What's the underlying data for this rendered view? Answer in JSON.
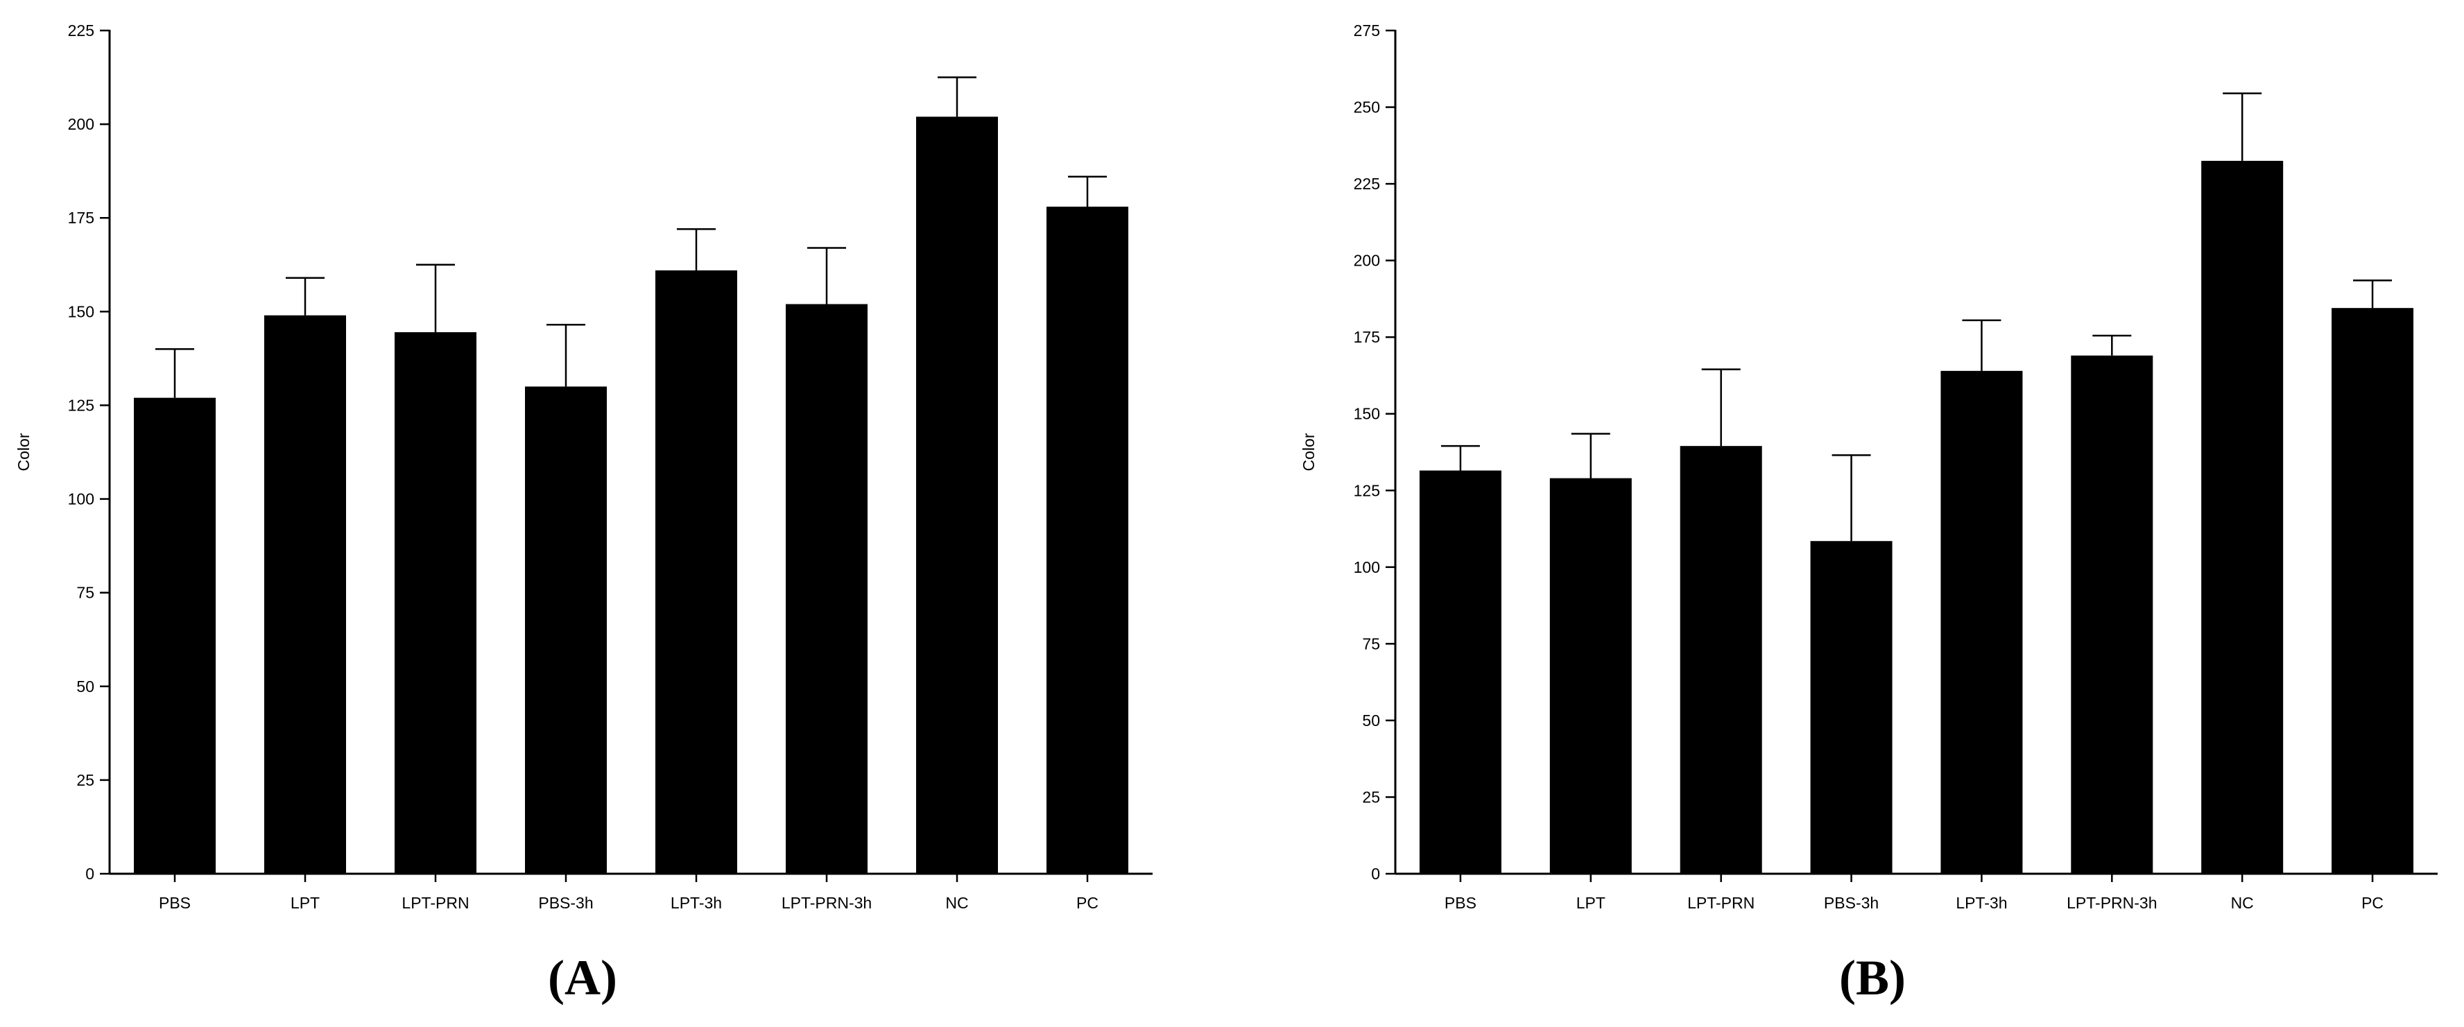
{
  "chart_data": [
    {
      "type": "bar",
      "panel_label": "(A)",
      "ylabel": "Color",
      "categories": [
        "PBS",
        "LPT",
        "LPT-PRN",
        "PBS-3h",
        "LPT-3h",
        "LPT-PRN-3h",
        "NC",
        "PC"
      ],
      "values": [
        127,
        149,
        144.5,
        130,
        161,
        152,
        202,
        178
      ],
      "errors": [
        13,
        10,
        18,
        16.5,
        11,
        15,
        10.5,
        8
      ],
      "ylim": [
        0,
        225
      ],
      "yticks": [
        0,
        25,
        50,
        75,
        100,
        125,
        150,
        175,
        200,
        225
      ],
      "grid": false,
      "bar_color": "#000000"
    },
    {
      "type": "bar",
      "panel_label": "(B)",
      "ylabel": "Color",
      "categories": [
        "PBS",
        "LPT",
        "LPT-PRN",
        "PBS-3h",
        "LPT-3h",
        "LPT-PRN-3h",
        "NC",
        "PC"
      ],
      "values": [
        131.5,
        129,
        139.5,
        108.5,
        164,
        169,
        232.5,
        184.5
      ],
      "errors": [
        8,
        14.5,
        25,
        28,
        16.5,
        6.5,
        22,
        9
      ],
      "ylim": [
        0,
        275
      ],
      "yticks": [
        0,
        25,
        50,
        75,
        100,
        125,
        150,
        175,
        200,
        225,
        250,
        275
      ],
      "grid": false,
      "bar_color": "#000000"
    }
  ]
}
